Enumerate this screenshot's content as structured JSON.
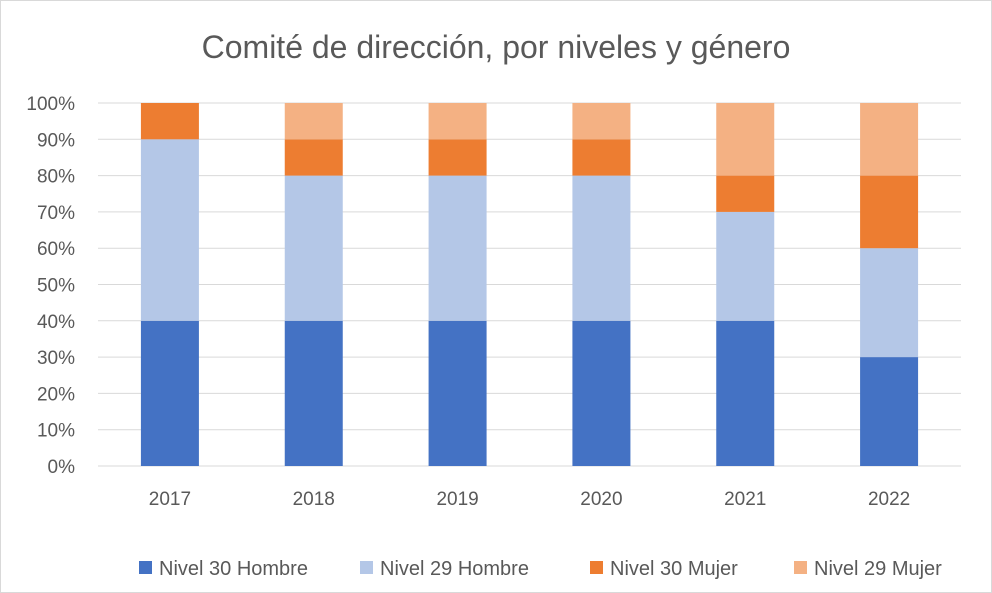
{
  "chart_data": {
    "type": "bar",
    "stacked": true,
    "title": "Comité de dirección, por niveles y género",
    "xlabel": "",
    "ylabel": "",
    "ylim": [
      0,
      100
    ],
    "y_ticks": [
      "0%",
      "10%",
      "20%",
      "30%",
      "40%",
      "50%",
      "60%",
      "70%",
      "80%",
      "90%",
      "100%"
    ],
    "y_tick_values": [
      0,
      10,
      20,
      30,
      40,
      50,
      60,
      70,
      80,
      90,
      100
    ],
    "categories": [
      "2017",
      "2018",
      "2019",
      "2020",
      "2021",
      "2022"
    ],
    "series": [
      {
        "name": "Nivel 30 Hombre",
        "color": "#4472C4",
        "values": [
          40,
          40,
          40,
          40,
          40,
          30
        ]
      },
      {
        "name": "Nivel 29 Hombre",
        "color": "#B4C7E7",
        "values": [
          50,
          40,
          40,
          40,
          30,
          30
        ]
      },
      {
        "name": "Nivel 30 Mujer",
        "color": "#ED7D31",
        "values": [
          10,
          10,
          10,
          10,
          10,
          20
        ]
      },
      {
        "name": "Nivel 29 Mujer",
        "color": "#F4B183",
        "values": [
          0,
          10,
          10,
          10,
          20,
          20
        ]
      }
    ],
    "grid": true,
    "legend": "bottom"
  }
}
